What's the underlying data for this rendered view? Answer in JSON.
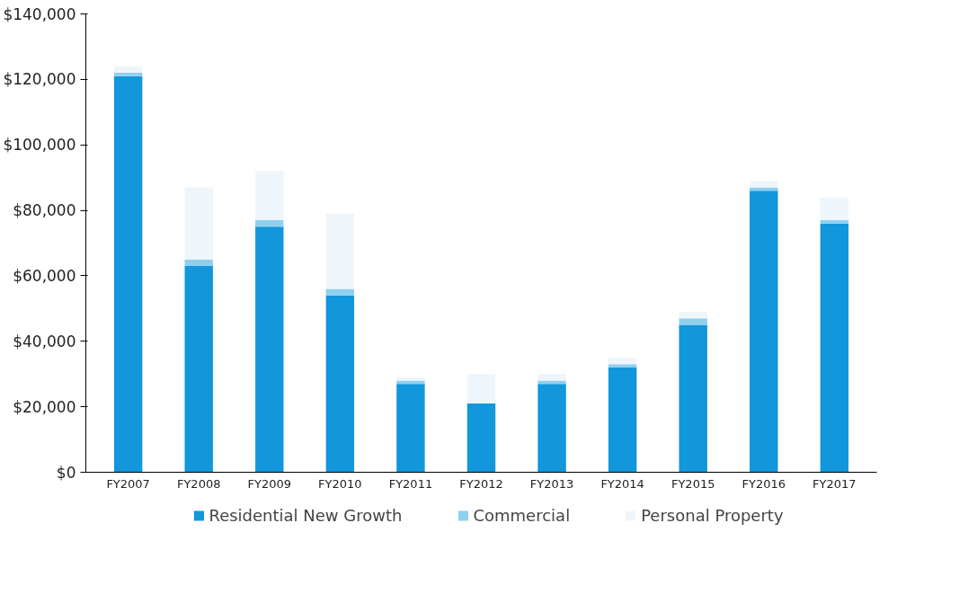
{
  "chart_data": {
    "type": "bar",
    "stacked": true,
    "categories": [
      "FY2007",
      "FY2008",
      "FY2009",
      "FY2010",
      "FY2011",
      "FY2012",
      "FY2013",
      "FY2014",
      "FY2015",
      "FY2016",
      "FY2017"
    ],
    "series": [
      {
        "name": "Residential New Growth",
        "color": "#1296dc",
        "values": [
          121000,
          63000,
          75000,
          54000,
          27000,
          21000,
          27000,
          32000,
          45000,
          86000,
          76000
        ]
      },
      {
        "name": "Commercial",
        "color": "#8fd0ee",
        "values": [
          1000,
          2000,
          2000,
          2000,
          1000,
          0,
          1000,
          1000,
          2000,
          1000,
          1000
        ]
      },
      {
        "name": "Personal Property",
        "color": "#eef6fb",
        "values": [
          2000,
          22000,
          15000,
          23000,
          1000,
          9000,
          2000,
          2000,
          2000,
          2000,
          7000
        ]
      }
    ],
    "ylim": [
      0,
      140000
    ],
    "yticks": [
      {
        "value": 0,
        "label": "$0"
      },
      {
        "value": 20000,
        "label": "$20,000"
      },
      {
        "value": 40000,
        "label": "$40,000"
      },
      {
        "value": 60000,
        "label": "$60,000"
      },
      {
        "value": 80000,
        "label": "$80,000"
      },
      {
        "value": 100000,
        "label": "$100,000"
      },
      {
        "value": 120000,
        "label": "$120,000"
      },
      {
        "value": 140000,
        "label": "$140,000"
      }
    ],
    "grid": false,
    "legend": "bottom"
  }
}
